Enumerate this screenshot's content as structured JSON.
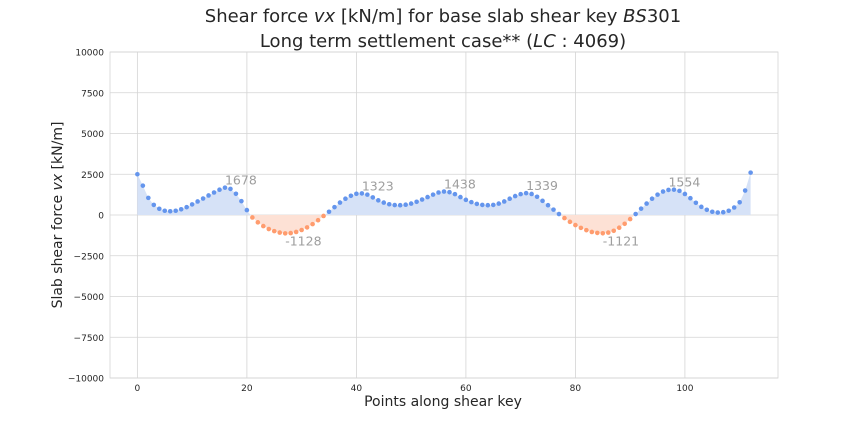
{
  "chart_data": {
    "type": "area",
    "title_line1_parts": [
      "Shear force ",
      "vx",
      " [kN/m] for base slab shear key ",
      "BS",
      "301"
    ],
    "title_line2_parts": [
      "Long term settlement case** (",
      "LC",
      " : ",
      "4069",
      ")"
    ],
    "xlabel": "Points along shear key",
    "ylabel_parts": [
      "Slab shear force ",
      "vx",
      " [kN/m]"
    ],
    "xlim": [
      -5,
      117
    ],
    "ylim": [
      -10000,
      10000
    ],
    "xticks": [
      0,
      20,
      40,
      60,
      80,
      100
    ],
    "xtick_labels": [
      "0",
      "20",
      "40",
      "60",
      "80",
      "100"
    ],
    "yticks": [
      10000,
      7500,
      5000,
      2500,
      0,
      -2500,
      -5000,
      -7500,
      -10000
    ],
    "ytick_labels": [
      "10000",
      "7500",
      "5000",
      "2500",
      "0",
      "−2500",
      "−5000",
      "−7500",
      "−10000"
    ],
    "grid": true,
    "x": [
      0,
      1,
      2,
      3,
      4,
      5,
      6,
      7,
      8,
      9,
      10,
      11,
      12,
      13,
      14,
      15,
      16,
      17,
      18,
      19,
      20,
      21,
      22,
      23,
      24,
      25,
      26,
      27,
      28,
      29,
      30,
      31,
      32,
      33,
      34,
      35,
      36,
      37,
      38,
      39,
      40,
      41,
      42,
      43,
      44,
      45,
      46,
      47,
      48,
      49,
      50,
      51,
      52,
      53,
      54,
      55,
      56,
      57,
      58,
      59,
      60,
      61,
      62,
      63,
      64,
      65,
      66,
      67,
      68,
      69,
      70,
      71,
      72,
      73,
      74,
      75,
      76,
      77,
      78,
      79,
      80,
      81,
      82,
      83,
      84,
      85,
      86,
      87,
      88,
      89,
      90,
      91,
      92,
      93,
      94,
      95,
      96,
      97,
      98,
      99,
      100,
      101,
      102,
      103,
      104,
      105,
      106,
      107,
      108,
      109,
      110,
      111,
      112
    ],
    "y": [
      2500,
      1800,
      1050,
      620,
      380,
      260,
      230,
      260,
      350,
      480,
      650,
      830,
      1010,
      1200,
      1380,
      1550,
      1678,
      1600,
      1300,
      850,
      300,
      -150,
      -450,
      -680,
      -860,
      -990,
      -1080,
      -1128,
      -1110,
      -1040,
      -920,
      -760,
      -560,
      -320,
      -60,
      200,
      480,
      760,
      1000,
      1180,
      1300,
      1323,
      1250,
      1080,
      900,
      760,
      660,
      610,
      600,
      630,
      700,
      810,
      950,
      1100,
      1250,
      1380,
      1438,
      1400,
      1280,
      1100,
      930,
      790,
      680,
      620,
      600,
      620,
      700,
      830,
      1000,
      1160,
      1280,
      1339,
      1290,
      1120,
      870,
      600,
      330,
      60,
      -190,
      -420,
      -620,
      -790,
      -930,
      -1040,
      -1100,
      -1121,
      -1080,
      -970,
      -780,
      -540,
      -250,
      60,
      390,
      700,
      1000,
      1250,
      1440,
      1540,
      1554,
      1480,
      1290,
      1030,
      750,
      500,
      320,
      200,
      150,
      170,
      260,
      460,
      780,
      1500,
      2600
    ],
    "annotations": [
      {
        "x": 16,
        "y": 1678,
        "text": "1678"
      },
      {
        "x": 27,
        "y": -1128,
        "text": "-1128"
      },
      {
        "x": 41,
        "y": 1323,
        "text": "1323"
      },
      {
        "x": 56,
        "y": 1438,
        "text": "1438"
      },
      {
        "x": 71,
        "y": 1339,
        "text": "1339"
      },
      {
        "x": 85,
        "y": -1121,
        "text": "-1121"
      },
      {
        "x": 97,
        "y": 1554,
        "text": "1554"
      }
    ],
    "colors": {
      "positive_marker": "#6495ed",
      "positive_fill": "#d6e2f7",
      "negative_marker": "#ff9c6e",
      "negative_fill": "#fde1d5",
      "annotation": "#9e9e9e",
      "grid": "#d4d4d4",
      "text": "#262626"
    }
  }
}
